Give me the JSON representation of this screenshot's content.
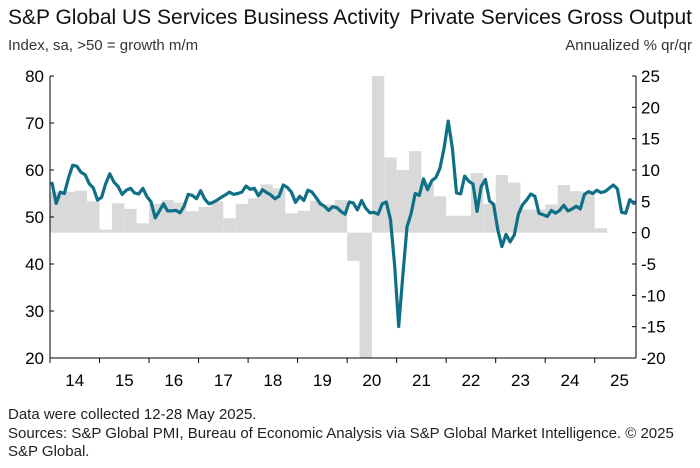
{
  "chart_data": {
    "type": "bar+line",
    "title_left": "S&P Global US Services Business Activity",
    "subtitle_left": "Index, sa, >50 = growth m/m",
    "title_right": "Private Services Gross Output",
    "subtitle_right": "Annualized % qr/qr",
    "x_tick_labels": [
      "14",
      "15",
      "16",
      "17",
      "18",
      "19",
      "20",
      "21",
      "22",
      "23",
      "24",
      "25"
    ],
    "left_axis": {
      "ylim": [
        20,
        80
      ],
      "ticks": [
        20,
        30,
        40,
        50,
        60,
        70,
        80
      ]
    },
    "right_axis": {
      "ylim": [
        -20,
        25
      ],
      "ticks": [
        -20,
        -15,
        -10,
        -5,
        0,
        5,
        10,
        15,
        20,
        25
      ]
    },
    "colors": {
      "line": "#0e6f86",
      "bars": "#d9d9d9"
    },
    "bars_series": {
      "name": "Private Services Gross Output (annualized % q/q, right axis)",
      "quarters": [
        "2014Q1",
        "2014Q2",
        "2014Q3",
        "2014Q4",
        "2015Q1",
        "2015Q2",
        "2015Q3",
        "2015Q4",
        "2016Q1",
        "2016Q2",
        "2016Q3",
        "2016Q4",
        "2017Q1",
        "2017Q2",
        "2017Q3",
        "2017Q4",
        "2018Q1",
        "2018Q2",
        "2018Q3",
        "2018Q4",
        "2019Q1",
        "2019Q2",
        "2019Q3",
        "2019Q4",
        "2020Q1",
        "2020Q2",
        "2020Q3",
        "2020Q4",
        "2021Q1",
        "2021Q2",
        "2021Q3",
        "2021Q4",
        "2022Q1",
        "2022Q2",
        "2022Q3",
        "2022Q4",
        "2023Q1",
        "2023Q2",
        "2023Q3",
        "2023Q4",
        "2024Q1",
        "2024Q2",
        "2024Q3",
        "2024Q4",
        "2025Q1"
      ],
      "values": [
        6.5,
        6.5,
        6.7,
        5.0,
        0.5,
        4.7,
        3.8,
        1.5,
        4.6,
        5.2,
        4.8,
        3.4,
        4.1,
        5.0,
        2.3,
        4.6,
        5.5,
        7.7,
        7.1,
        3.1,
        3.5,
        5.1,
        4.5,
        5.2,
        -4.5,
        -22.0,
        25.0,
        12.0,
        10.0,
        13.0,
        8.0,
        5.8,
        2.7,
        2.7,
        9.5,
        4.6,
        9.2,
        8.0,
        3.7,
        3.7,
        4.5,
        7.6,
        6.6,
        6.5,
        0.7
      ]
    },
    "line_series": {
      "name": "S&P Global US Services Business Activity Index (left axis)",
      "start": "2014-01",
      "values": [
        57.2,
        52.9,
        55.3,
        55.0,
        58.4,
        61.0,
        60.8,
        59.5,
        59.0,
        57.1,
        56.2,
        53.6,
        54.2,
        57.1,
        59.2,
        57.4,
        56.5,
        54.8,
        55.7,
        56.1,
        55.1,
        54.9,
        56.1,
        54.3,
        53.2,
        49.8,
        51.3,
        52.8,
        51.3,
        51.3,
        51.4,
        50.9,
        52.3,
        54.8,
        54.6,
        53.9,
        55.6,
        53.8,
        52.8,
        53.1,
        53.6,
        54.2,
        54.7,
        55.3,
        54.8,
        55.0,
        55.3,
        56.6,
        55.9,
        56.1,
        54.5,
        55.8,
        55.2,
        54.7,
        53.9,
        54.4,
        56.8,
        56.3,
        55.3,
        53.1,
        54.4,
        53.5,
        55.7,
        55.3,
        54.1,
        52.8,
        52.3,
        51.4,
        52.2,
        52.0,
        51.2,
        50.6,
        53.2,
        53.0,
        51.5,
        53.5,
        51.9,
        50.9,
        51.0,
        50.6,
        52.8,
        53.2,
        49.4,
        39.8,
        26.7,
        37.5,
        47.9,
        50.7,
        55.0,
        54.6,
        58.1,
        55.8,
        57.7,
        58.4,
        60.4,
        64.7,
        70.4,
        64.6,
        55.1,
        54.9,
        58.7,
        57.6,
        57.0,
        51.2,
        56.5,
        58.0,
        53.4,
        52.7,
        47.3,
        43.7,
        46.3,
        44.7,
        46.2,
        50.6,
        52.6,
        53.6,
        54.9,
        54.4,
        50.8,
        50.5,
        50.1,
        51.4,
        50.8,
        51.4,
        52.5,
        51.3,
        51.7,
        52.3,
        51.7,
        54.8,
        55.4,
        55.0,
        55.7,
        55.2,
        55.4,
        56.1,
        56.8,
        56.0,
        51.0,
        50.8,
        53.7,
        52.9
      ]
    },
    "notes": [
      "Data were collected 12-28 May 2025.",
      "Sources: S&P Global PMI, Bureau of Economic Analysis via S&P Global Market Intelligence. © 2025 S&P Global."
    ]
  }
}
